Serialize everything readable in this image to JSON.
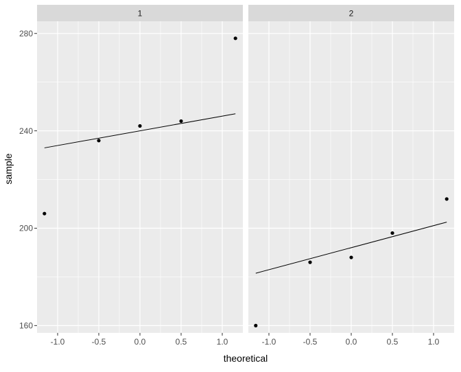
{
  "chart_data": {
    "type": "scatter",
    "description_free": true,
    "xlabel": "theoretical",
    "ylabel": "sample",
    "xlim": [
      -1.25,
      1.25
    ],
    "ylim": [
      157,
      285
    ],
    "x_ticks": [
      -1.0,
      -0.5,
      0.0,
      0.5,
      1.0
    ],
    "x_tick_labels": [
      "-1.0",
      "-0.5",
      "0.0",
      "0.5",
      "1.0"
    ],
    "y_ticks": [
      160,
      200,
      240,
      280
    ],
    "y_tick_labels": [
      "160",
      "200",
      "240",
      "280"
    ],
    "grid": true,
    "colors": {
      "panel_bg": "#ebebeb",
      "strip_bg": "#d9d9d9",
      "grid": "#ffffff",
      "point": "#000000",
      "line": "#000000",
      "text": "#4d4d4d",
      "title_text": "#000000",
      "strip_text": "#1a1a1a"
    },
    "panels": [
      {
        "strip": "1",
        "points": [
          {
            "x": -1.16,
            "y": 206
          },
          {
            "x": -0.5,
            "y": 236
          },
          {
            "x": 0.0,
            "y": 242
          },
          {
            "x": 0.5,
            "y": 244
          },
          {
            "x": 1.16,
            "y": 278
          }
        ],
        "line": {
          "x": [
            -1.16,
            1.16
          ],
          "y": [
            233,
            247
          ]
        }
      },
      {
        "strip": "2",
        "points": [
          {
            "x": -1.16,
            "y": 160
          },
          {
            "x": -0.5,
            "y": 186
          },
          {
            "x": 0.0,
            "y": 188
          },
          {
            "x": 0.5,
            "y": 198
          },
          {
            "x": 1.16,
            "y": 212
          }
        ],
        "line": {
          "x": [
            -1.16,
            1.16
          ],
          "y": [
            181.5,
            202.5
          ]
        }
      }
    ]
  }
}
